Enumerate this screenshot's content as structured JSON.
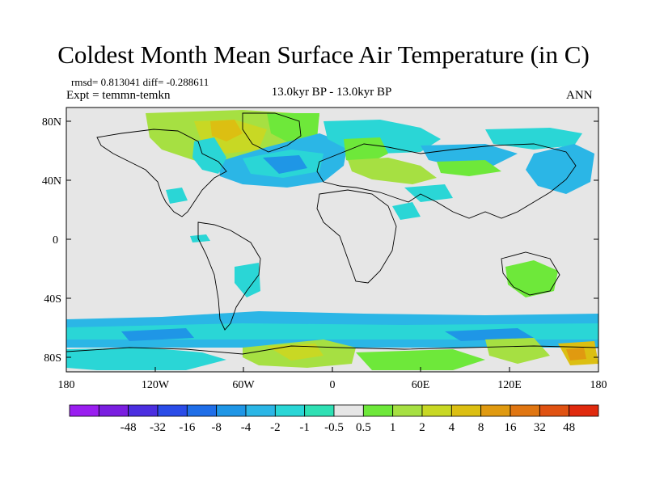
{
  "title": "Coldest Month Mean Surface Air Temperature (in C)",
  "stats": {
    "rmsd": "rmsd= 0.813041",
    "diff": "diff= -0.288611"
  },
  "expt": "Expt = temmn-temkn",
  "subtitle": "13.0kyr BP - 13.0kyr BP",
  "season": "ANN",
  "lat_ticks": [
    "80N",
    "40N",
    "0",
    "40S",
    "80S"
  ],
  "lon_ticks": [
    "180",
    "120W",
    "60W",
    "0",
    "60E",
    "120E",
    "180"
  ],
  "colorbar": {
    "labels": [
      "-48",
      "-32",
      "-16",
      "-8",
      "-4",
      "-2",
      "-1",
      "-0.5",
      "0.5",
      "1",
      "2",
      "4",
      "8",
      "16",
      "32",
      "48"
    ],
    "colors": [
      "#9a1ef0",
      "#7a1ee0",
      "#4b2ee0",
      "#2a4ce8",
      "#1f6ee8",
      "#1f96e6",
      "#2bb6e6",
      "#2ad6d6",
      "#2fe0b4",
      "#e6e6e6",
      "#6ee83a",
      "#a6e042",
      "#c8d824",
      "#dcbf12",
      "#e09a10",
      "#e07612",
      "#e05212",
      "#e02a0e"
    ]
  },
  "colors": {
    "background_grey": "#e6e6e6",
    "coast": "#000000"
  }
}
